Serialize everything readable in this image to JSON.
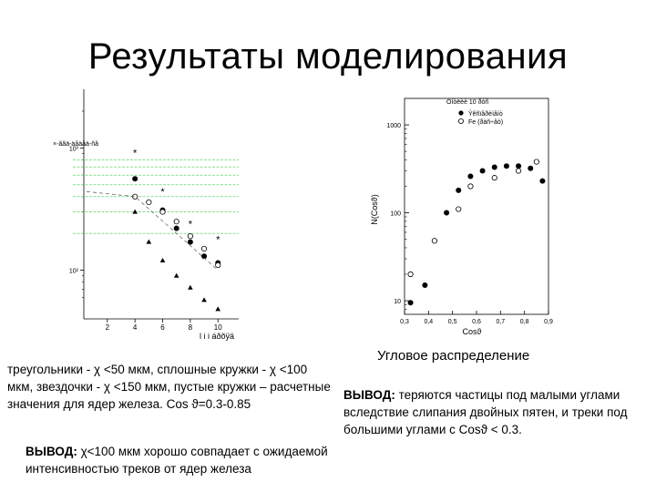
{
  "slide": {
    "title": "Результаты моделирования"
  },
  "captions": {
    "left_text": "треугольники - χ <50 мкм, сплошные кружки - χ <100 мкм, звездочки - χ <150 мкм, пустые кружки – расчетные значения для ядер железа. Cos ϑ=0.3-0.85",
    "right_title": "Угловое распределение",
    "conclusion_right_label": "ВЫВОД:",
    "conclusion_right_text": " теряются частицы под малыми углами вследствие слипания двойных пятен, и треки под большими углами с Cosϑ < 0.3.",
    "conclusion_left_label": "ВЫВОД:",
    "conclusion_left_text": " χ<100 мкм хорошо совпадает с ожидаемой интенсивностью треков от ядер железа"
  },
  "colors": {
    "gridline": "#44cc44",
    "markers": "#000000"
  },
  "chart_data": [
    {
      "id": "left",
      "type": "scatter",
      "title": "",
      "xlabel": "l i i áðõÿä",
      "ylabel": "",
      "legend_text": "×-ããä-äåäåä-ñâ",
      "yscale": "log",
      "xlim": [
        0.3,
        11.5
      ],
      "ylim": [
        40,
        2000
      ],
      "xticks": [
        2,
        4,
        6,
        8,
        10
      ],
      "yticks": [
        {
          "v": 1000,
          "label": "10³"
        },
        {
          "v": 100,
          "label": "10²"
        }
      ],
      "grid": "horizontal",
      "series": [
        {
          "name": "stars",
          "marker": "star",
          "values": [
            [
              4,
              920
            ],
            [
              6,
              440
            ],
            [
              8,
              240
            ],
            [
              10,
              180
            ]
          ]
        },
        {
          "name": "filled circles",
          "marker": "filled-circle",
          "values": [
            [
              4,
              560
            ],
            [
              6,
              310
            ],
            [
              7,
              220
            ],
            [
              8,
              170
            ],
            [
              9,
              130
            ],
            [
              10,
              115
            ]
          ]
        },
        {
          "name": "triangles",
          "marker": "triangle",
          "values": [
            [
              4,
              300
            ],
            [
              5,
              170
            ],
            [
              6,
              120
            ],
            [
              7,
              90
            ],
            [
              8,
              72
            ],
            [
              9,
              57
            ],
            [
              10,
              48
            ]
          ]
        },
        {
          "name": "open circles",
          "marker": "open-circle",
          "values": [
            [
              4,
              400
            ],
            [
              5,
              360
            ],
            [
              6,
              300
            ],
            [
              7,
              250
            ],
            [
              8,
              190
            ],
            [
              9,
              150
            ],
            [
              10,
              110
            ]
          ]
        },
        {
          "name": "dashed fit",
          "marker": "line-dashed",
          "values": [
            [
              0.5,
              440
            ],
            [
              4,
              400
            ],
            [
              10,
              100
            ]
          ]
        }
      ]
    },
    {
      "id": "right",
      "type": "scatter",
      "title": "",
      "xlabel": "Cosϑ",
      "ylabel": "N(Cosϑ)",
      "legend_title": "Ôíòëèè 10 ðóñ",
      "legend_entries": [
        "Ýêñïåðèìåíò",
        "Fe (ðàñ÷åò)"
      ],
      "legend_position": "top-right",
      "yscale": "log",
      "xlim": [
        0.3,
        0.9
      ],
      "ylim": [
        7,
        2000
      ],
      "xticks": [
        0.3,
        0.4,
        0.5,
        0.6,
        0.7,
        0.8,
        0.9
      ],
      "yticks": [
        {
          "v": 1000,
          "label": "1000"
        },
        {
          "v": 100,
          "label": "100"
        },
        {
          "v": 10,
          "label": "10"
        }
      ],
      "grid": "none",
      "series": [
        {
          "name": "Ýêñïåðèìåíò",
          "marker": "filled-circle",
          "values": [
            [
              0.325,
              9.5
            ],
            [
              0.385,
              15
            ],
            [
              0.425,
              48
            ],
            [
              0.475,
              100
            ],
            [
              0.525,
              180
            ],
            [
              0.575,
              260
            ],
            [
              0.625,
              300
            ],
            [
              0.675,
              330
            ],
            [
              0.725,
              340
            ],
            [
              0.775,
              340
            ],
            [
              0.825,
              320
            ],
            [
              0.875,
              230
            ]
          ]
        },
        {
          "name": "Fe (ðàñ÷åò)",
          "marker": "open-circle",
          "values": [
            [
              0.325,
              20
            ],
            [
              0.425,
              48
            ],
            [
              0.525,
              110
            ],
            [
              0.575,
              200
            ],
            [
              0.675,
              250
            ],
            [
              0.775,
              300
            ],
            [
              0.85,
              380
            ]
          ]
        }
      ]
    }
  ]
}
